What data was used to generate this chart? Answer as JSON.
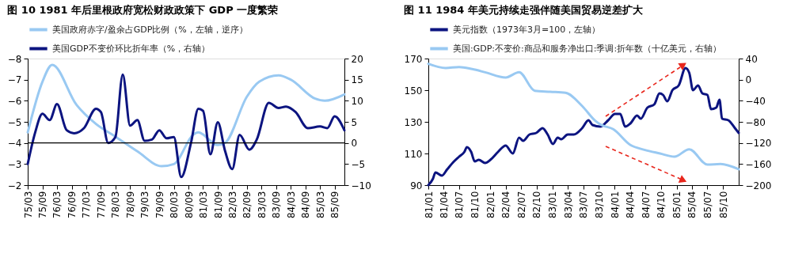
{
  "chart_data": [
    {
      "type": "line",
      "title": "图 10  1981 年后里根政府宽松财政政策下 GDP 一度繁荣",
      "legend": "top",
      "xlim": [
        "1975-03-01",
        "1986-01-01"
      ],
      "xticks": [
        {
          "value": "1975-03-01",
          "label": "75/03"
        },
        {
          "value": "1975-09-01",
          "label": "75/09"
        },
        {
          "value": "1976-03-01",
          "label": "76/03"
        },
        {
          "value": "1976-09-01",
          "label": "76/09"
        },
        {
          "value": "1977-03-01",
          "label": "77/03"
        },
        {
          "value": "1977-09-01",
          "label": "77/09"
        },
        {
          "value": "1978-03-01",
          "label": "78/03"
        },
        {
          "value": "1978-09-01",
          "label": "78/09"
        },
        {
          "value": "1979-03-01",
          "label": "79/03"
        },
        {
          "value": "1979-09-01",
          "label": "79/09"
        },
        {
          "value": "1980-03-01",
          "label": "80/03"
        },
        {
          "value": "1980-09-01",
          "label": "80/09"
        },
        {
          "value": "1981-03-01",
          "label": "81/03"
        },
        {
          "value": "1981-09-01",
          "label": "81/09"
        },
        {
          "value": "1982-03-01",
          "label": "82/03"
        },
        {
          "value": "1982-09-01",
          "label": "82/09"
        },
        {
          "value": "1983-03-01",
          "label": "83/03"
        },
        {
          "value": "1983-09-01",
          "label": "83/09"
        },
        {
          "value": "1984-03-01",
          "label": "84/03"
        },
        {
          "value": "1984-09-01",
          "label": "84/09"
        },
        {
          "value": "1985-03-01",
          "label": "85/03"
        },
        {
          "value": "1985-09-01",
          "label": "85/09"
        }
      ],
      "ylim": [
        -2,
        -8
      ],
      "yticks": [
        -8,
        -7,
        -6,
        -5,
        -4,
        -3,
        -2
      ],
      "y2lim": [
        -10,
        20
      ],
      "y2ticks": [
        -10,
        -5,
        0,
        5,
        10,
        15,
        20
      ],
      "ref_lines": [
        {
          "axis": "y2",
          "value": 0,
          "color": "#000000"
        }
      ],
      "series": [
        {
          "name": "美国政府赤字/盈余占GDP比例（%，左轴，逆序）",
          "color": "#99c9f2",
          "axis": "y",
          "x": [
            "1975-03-01",
            "1975-09-01",
            "1976-01-01",
            "1976-11-01",
            "1977-07-01",
            "1978-03-01",
            "1978-12-01",
            "1979-10-01",
            "1980-03-01",
            "1980-11-01",
            "1981-01-01",
            "1981-09-01",
            "1981-12-01",
            "1982-09-01",
            "1983-02-01",
            "1983-10-01",
            "1984-03-01",
            "1985-01-01",
            "1985-05-01",
            "1986-01-01"
          ],
          "values": [
            -4.5,
            -6.9,
            -7.7,
            -5.8,
            -4.9,
            -4.3,
            -3.6,
            -2.9,
            -3.0,
            -4.4,
            -4.5,
            -3.9,
            -4.0,
            -6.2,
            -6.9,
            -7.2,
            -7.0,
            -6.1,
            -6.0,
            -6.3
          ]
        },
        {
          "name": "美国GDP不变价环比折年率（%，右轴）",
          "color": "#0c1480",
          "axis": "y2",
          "x": [
            "1975-03-01",
            "1975-06-01",
            "1975-09-01",
            "1975-12-01",
            "1976-03-01",
            "1976-07-01",
            "1976-10-01",
            "1977-02-01",
            "1977-07-01",
            "1977-09-01",
            "1977-12-01",
            "1978-03-01",
            "1978-06-01",
            "1978-09-01",
            "1978-12-01",
            "1979-03-01",
            "1979-06-01",
            "1979-09-01",
            "1979-12-01",
            "1980-03-01",
            "1980-06-01",
            "1980-10-01",
            "1981-01-01",
            "1981-03-01",
            "1981-06-01",
            "1981-09-01",
            "1981-12-01",
            "1982-03-01",
            "1982-06-01",
            "1982-10-01",
            "1983-01-01",
            "1983-06-01",
            "1983-10-01",
            "1984-01-01",
            "1984-05-01",
            "1984-10-01",
            "1985-03-01",
            "1985-06-01",
            "1985-09-01",
            "1986-01-01"
          ],
          "values": [
            -5.0,
            2.4,
            6.9,
            5.4,
            9.2,
            3.0,
            2.3,
            3.5,
            8.1,
            7.3,
            0,
            1.4,
            16.2,
            4.1,
            5.4,
            0.5,
            0.8,
            3.0,
            1.1,
            1.4,
            -8.1,
            0,
            8.1,
            7.6,
            -2.7,
            4.9,
            -1.9,
            -6.2,
            1.9,
            -1.6,
            0.8,
            9.5,
            8.3,
            8.6,
            7.3,
            3.5,
            3.9,
            3.5,
            6.3,
            3.0
          ]
        }
      ]
    },
    {
      "type": "line",
      "title": "图 11  1984 年美元持续走强伴随美国贸易逆差扩大",
      "legend": "top",
      "xlim": [
        "1981-01-01",
        "1986-01-01"
      ],
      "xticks": [
        {
          "value": "1981-01-01",
          "label": "81/01"
        },
        {
          "value": "1981-04-01",
          "label": "81/04"
        },
        {
          "value": "1981-07-01",
          "label": "81/07"
        },
        {
          "value": "1981-10-01",
          "label": "81/10"
        },
        {
          "value": "1982-01-01",
          "label": "82/01"
        },
        {
          "value": "1982-04-01",
          "label": "82/04"
        },
        {
          "value": "1982-07-01",
          "label": "82/07"
        },
        {
          "value": "1982-10-01",
          "label": "82/10"
        },
        {
          "value": "1983-01-01",
          "label": "83/01"
        },
        {
          "value": "1983-04-01",
          "label": "83/04"
        },
        {
          "value": "1983-07-01",
          "label": "83/07"
        },
        {
          "value": "1983-10-01",
          "label": "83/10"
        },
        {
          "value": "1984-01-01",
          "label": "84/01"
        },
        {
          "value": "1984-04-01",
          "label": "84/04"
        },
        {
          "value": "1984-07-01",
          "label": "84/07"
        },
        {
          "value": "1984-10-01",
          "label": "84/10"
        },
        {
          "value": "1985-01-01",
          "label": "85/01"
        },
        {
          "value": "1985-04-01",
          "label": "85/04"
        },
        {
          "value": "1985-07-01",
          "label": "85/07"
        },
        {
          "value": "1985-10-01",
          "label": "85/10"
        }
      ],
      "ylim": [
        90,
        170
      ],
      "yticks": [
        90,
        110,
        130,
        150,
        170
      ],
      "y2lim": [
        -200,
        40
      ],
      "y2ticks": [
        -200,
        -160,
        -120,
        -80,
        -40,
        0,
        40
      ],
      "series": [
        {
          "name": "美元指数（1973年3月=100，左轴）",
          "color": "#0c1480",
          "axis": "y",
          "x": [
            "1981-01-01",
            "1981-01-28",
            "1981-02-12",
            "1981-03-22",
            "1981-04-22",
            "1981-06-01",
            "1981-07-01",
            "1981-08-01",
            "1981-08-16",
            "1981-09-10",
            "1981-10-01",
            "1981-10-25",
            "1981-12-01",
            "1982-01-01",
            "1982-02-15",
            "1982-04-01",
            "1982-05-13",
            "1982-06-19",
            "1982-07-13",
            "1982-08-19",
            "1982-09-28",
            "1982-11-04",
            "1982-12-04",
            "1983-01-04",
            "1983-02-01",
            "1983-02-22",
            "1983-04-01",
            "1983-05-07",
            "1983-06-25",
            "1983-08-01",
            "1983-08-25",
            "1983-10-10",
            "1983-11-25",
            "1984-01-04",
            "1984-02-04",
            "1984-03-04",
            "1984-04-04",
            "1984-05-13",
            "1984-06-04",
            "1984-07-13",
            "1984-08-22",
            "1984-09-22",
            "1984-10-13",
            "1984-11-07",
            "1984-12-07",
            "1985-01-13",
            "1985-02-22",
            "1985-03-16",
            "1985-04-07",
            "1985-05-07",
            "1985-06-01",
            "1985-07-01",
            "1985-07-22",
            "1985-08-22",
            "1985-09-10",
            "1985-09-25",
            "1985-11-01",
            "1985-12-10",
            "1986-01-01"
          ],
          "values": [
            90,
            94,
            98,
            96,
            100,
            105,
            108,
            111,
            114,
            111,
            105,
            106,
            104,
            106,
            111,
            115,
            110,
            120,
            118,
            122,
            123,
            126,
            122,
            116,
            120,
            119,
            122,
            122,
            126,
            131,
            128,
            127,
            131,
            135,
            135,
            127,
            129,
            134,
            132,
            139,
            141,
            148,
            147,
            143,
            150,
            153,
            164,
            161,
            150,
            153,
            148,
            147,
            138,
            139,
            144,
            132,
            131,
            126,
            123
          ]
        },
        {
          "name": "美国:GDP:不变价:商品和服务净出口:季调:折年数（十亿美元，右轴）",
          "color": "#99c9f2",
          "axis": "y2",
          "x": [
            "1981-01-01",
            "1981-04-13",
            "1981-07-01",
            "1981-09-16",
            "1981-12-01",
            "1982-04-01",
            "1982-06-19",
            "1982-09-19",
            "1982-12-19",
            "1983-03-19",
            "1983-06-25",
            "1983-09-10",
            "1983-10-10",
            "1983-12-25",
            "1984-04-04",
            "1984-06-25",
            "1984-09-25",
            "1984-12-19",
            "1985-03-16",
            "1985-07-01",
            "1985-09-16",
            "1986-01-01"
          ],
          "values": [
            30,
            22,
            24,
            20,
            14,
            4,
            14,
            -21,
            -23,
            -25,
            -50,
            -78,
            -85,
            -94,
            -124,
            -133,
            -140,
            -146,
            -132,
            -161,
            -160,
            -170
          ]
        }
      ]
    }
  ]
}
